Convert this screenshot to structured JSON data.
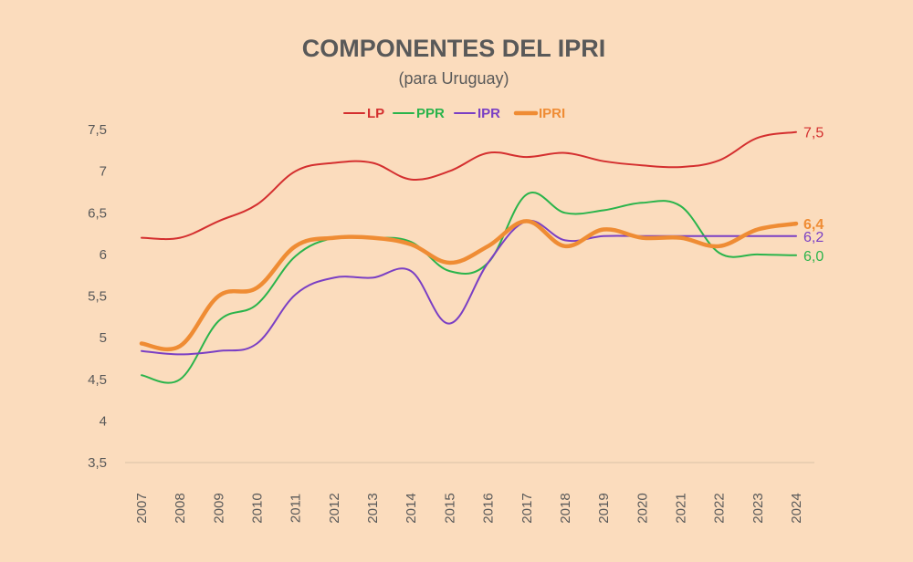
{
  "chart_data": {
    "type": "line",
    "title": "COMPONENTES DEL IPRI",
    "subtitle": "(para Uruguay)",
    "xlabel": "",
    "ylabel": "",
    "ylim": [
      3.5,
      7.5
    ],
    "y_ticks": [
      "3,5",
      "4",
      "4,5",
      "5",
      "5,5",
      "6",
      "6,5",
      "7",
      "7,5"
    ],
    "categories": [
      "2007",
      "2008",
      "2009",
      "2010",
      "2011",
      "2012",
      "2013",
      "2014",
      "2015",
      "2016",
      "2017",
      "2018",
      "2019",
      "2020",
      "2021",
      "2022",
      "2023",
      "2024"
    ],
    "grid": false,
    "legend_position": "top-center",
    "series": [
      {
        "name": "LP",
        "color": "#d42f2f",
        "values": [
          6.2,
          6.2,
          6.4,
          6.6,
          7.0,
          7.1,
          7.1,
          6.9,
          7.0,
          7.22,
          7.17,
          7.22,
          7.12,
          7.07,
          7.05,
          7.13,
          7.4,
          7.47
        ],
        "end_label": "7,5"
      },
      {
        "name": "PPR",
        "color": "#2ab44b",
        "values": [
          4.55,
          4.5,
          5.2,
          5.4,
          5.98,
          6.2,
          6.2,
          6.15,
          5.8,
          5.9,
          6.72,
          6.5,
          6.53,
          6.62,
          6.58,
          6.02,
          6.0,
          5.99
        ],
        "end_label": "6,0"
      },
      {
        "name": "IPR",
        "color": "#7a3fc4",
        "values": [
          4.84,
          4.8,
          4.84,
          4.93,
          5.52,
          5.72,
          5.72,
          5.8,
          5.17,
          5.9,
          6.4,
          6.17,
          6.22,
          6.22,
          6.22,
          6.22,
          6.22,
          6.22
        ],
        "end_label": "6,2"
      },
      {
        "name": "IPRI",
        "color": "#ef8c34",
        "values": [
          4.93,
          4.9,
          5.5,
          5.6,
          6.1,
          6.2,
          6.2,
          6.12,
          5.9,
          6.1,
          6.4,
          6.1,
          6.3,
          6.2,
          6.2,
          6.1,
          6.3,
          6.37
        ],
        "end_label": "6,4"
      }
    ]
  }
}
